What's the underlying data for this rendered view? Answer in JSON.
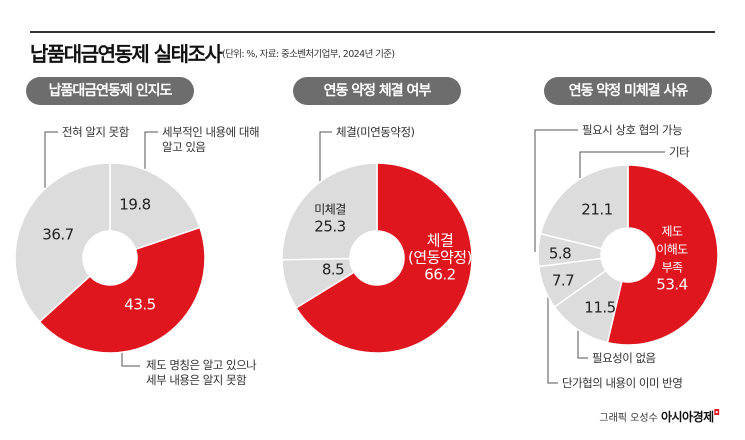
{
  "title": "납품대금연동제 실태조사",
  "subtitle": "(단위: %, 자료: 중소벤처기업부, 2024년 기준)",
  "credit": {
    "author": "그래픽 오성수",
    "brand": "아시아경제"
  },
  "colors": {
    "accent": "#e0161f",
    "neutral": "#dcdcdc",
    "pill": "#6d6d6d"
  },
  "chart_data": [
    {
      "type": "pie",
      "donut": true,
      "title": "납품대금연동제 인지도",
      "slices": [
        {
          "label": "세부적인 내용에 대해 알고 있음",
          "value": 19.8,
          "color": "#dcdcdc"
        },
        {
          "label": "제도 명칭은 알고 있으나 세부 내용은 알지 못함",
          "value": 43.5,
          "color": "#e0161f"
        },
        {
          "label": "전혀 알지 못함",
          "value": 36.7,
          "color": "#dcdcdc"
        }
      ],
      "labels": {
        "a1": "세부적인 내용에 대해",
        "a2": "알고 있음",
        "b1": "제도 명칭은 알고 있으나",
        "b2": "세부 내용은 알지 못함",
        "c": "전혀 알지 못함"
      },
      "values_text": [
        "19.8",
        "43.5",
        "36.7"
      ]
    },
    {
      "type": "pie",
      "donut": true,
      "title": "연동 약정 체결 여부",
      "slices": [
        {
          "label": "체결(연동약정)",
          "value": 66.2,
          "color": "#e0161f"
        },
        {
          "label": "체결(미연동약정)",
          "value": 8.5,
          "color": "#dcdcdc"
        },
        {
          "label": "미체결",
          "value": 25.3,
          "color": "#dcdcdc"
        }
      ],
      "labels": {
        "a1": "체결",
        "a2": "(연동약정)",
        "b": "체결(미연동약정)",
        "c": "미체결"
      },
      "values_text": [
        "66.2",
        "8.5",
        "25.3"
      ]
    },
    {
      "type": "pie",
      "donut": true,
      "title": "연동 약정 미체결 사유",
      "slices": [
        {
          "label": "제도 이해도 부족",
          "value": 53.4,
          "color": "#e0161f"
        },
        {
          "label": "필요성이 없음",
          "value": 11.5,
          "color": "#dcdcdc"
        },
        {
          "label": "단가협의 내용이 이미 반영",
          "value": 7.7,
          "color": "#dcdcdc"
        },
        {
          "label": "필요시 상호 협의 가능",
          "value": 5.8,
          "color": "#dcdcdc"
        },
        {
          "label": "기타",
          "value": 21.1,
          "color": "#dcdcdc"
        }
      ],
      "labels": {
        "a1": "제도",
        "a2": "이해도",
        "a3": "부족",
        "b": "필요성이 없음",
        "c": "단가협의 내용이 이미 반영",
        "d": "필요시 상호 협의 가능",
        "e": "기타"
      },
      "values_text": [
        "53.4",
        "11.5",
        "7.7",
        "5.8",
        "21.1"
      ]
    }
  ]
}
